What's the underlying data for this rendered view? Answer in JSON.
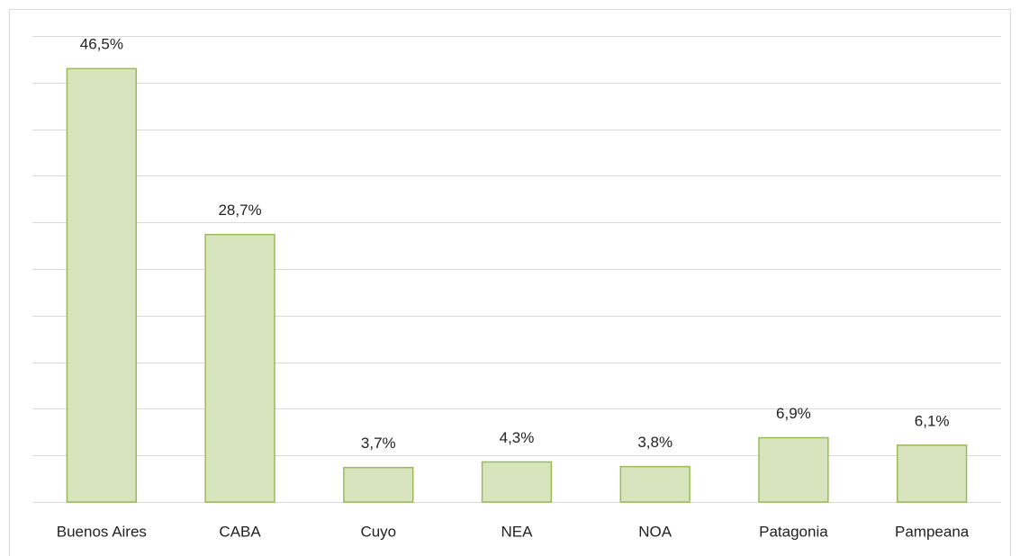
{
  "chart_data": {
    "type": "bar",
    "categories": [
      "Buenos Aires",
      "CABA",
      "Cuyo",
      "NEA",
      "NOA",
      "Patagonia",
      "Pampeana"
    ],
    "values": [
      46.5,
      28.7,
      3.7,
      4.3,
      3.8,
      6.9,
      6.1
    ],
    "value_labels": [
      "46,5%",
      "28,7%",
      "3,7%",
      "4,3%",
      "3,8%",
      "6,9%",
      "6,1%"
    ],
    "color": "#d7e4bd",
    "edge_color": "#9bbb59",
    "ylim": [
      0,
      50
    ],
    "yticks": [
      0,
      5,
      10,
      15,
      20,
      25,
      30,
      35,
      40,
      45,
      50
    ],
    "grid": true
  }
}
